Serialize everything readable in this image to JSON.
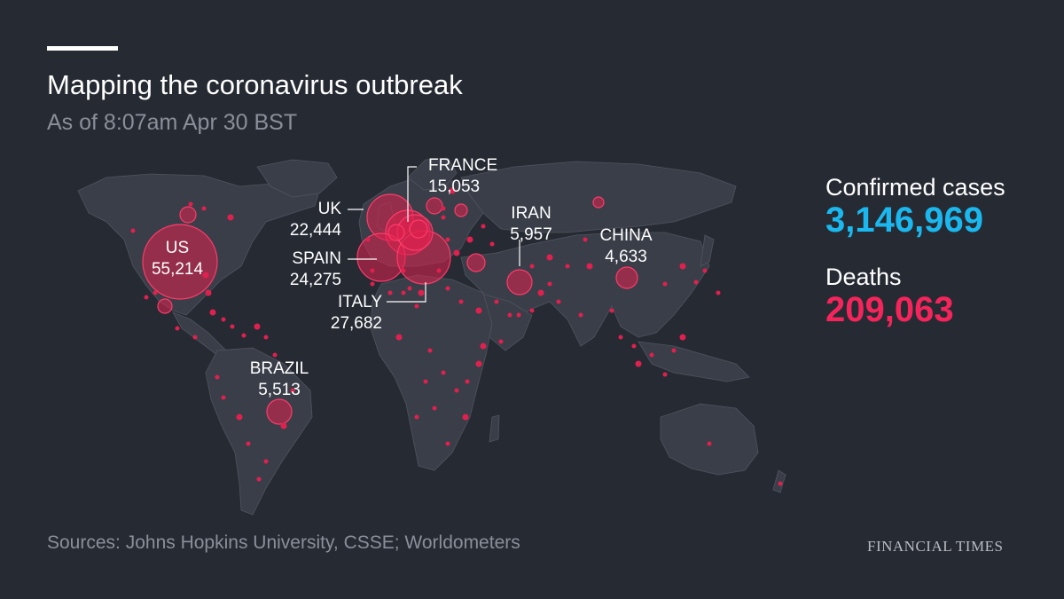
{
  "header": {
    "title": "Mapping the coronavirus outbreak",
    "subtitle": "As of 8:07am Apr 30 BST"
  },
  "stats": {
    "confirmed_label": "Confirmed cases",
    "confirmed_value": "3,146,969",
    "confirmed_color": "#1ab8ee",
    "deaths_label": "Deaths",
    "deaths_value": "209,063",
    "deaths_color": "#f5245b"
  },
  "map": {
    "marker_color": "#e0204f",
    "land_color": "#3a3e48",
    "labels": [
      {
        "name": "US",
        "value": "55,214"
      },
      {
        "name": "UK",
        "value": "22,444"
      },
      {
        "name": "FRANCE",
        "value": "15,053"
      },
      {
        "name": "SPAIN",
        "value": "24,275"
      },
      {
        "name": "ITALY",
        "value": "27,682"
      },
      {
        "name": "IRAN",
        "value": "5,957"
      },
      {
        "name": "CHINA",
        "value": "4,633"
      },
      {
        "name": "BRAZIL",
        "value": "5,513"
      }
    ]
  },
  "footer": {
    "sources": "Sources: Johns Hopkins University, CSSE;  Worldometers",
    "brand": "FINANCIAL TIMES"
  }
}
